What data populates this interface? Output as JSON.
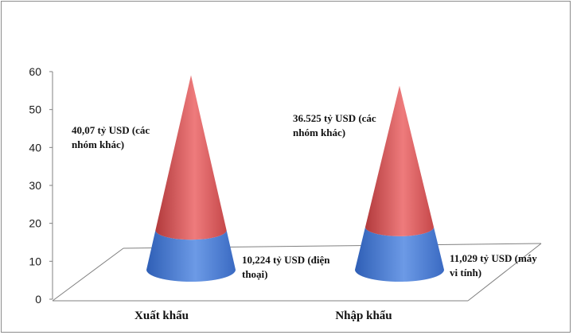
{
  "chart_data": {
    "type": "bar",
    "shape": "cone",
    "stacked": true,
    "categories": [
      "Xuất khẩu",
      "Nhập khẩu"
    ],
    "series": [
      {
        "values": [
          10.224,
          11.029
        ],
        "color": "#4a7fd4"
      },
      {
        "values": [
          40.07,
          36.525
        ],
        "color": "#d9585a"
      }
    ],
    "data_labels": [
      [
        "10,224 tỷ USD (điện thoại)",
        "40,07 tỷ USD (các nhóm khác)"
      ],
      [
        "11,029 tỷ USD (máy vi tính)",
        "36.525 tỷ USD (các nhóm khác)"
      ]
    ],
    "y_ticks": [
      "0",
      "10",
      "20",
      "30",
      "40",
      "50",
      "60"
    ],
    "ylim": [
      0,
      60
    ],
    "title": "",
    "xlabel": "",
    "ylabel": "",
    "grid": false,
    "legend": "none"
  }
}
